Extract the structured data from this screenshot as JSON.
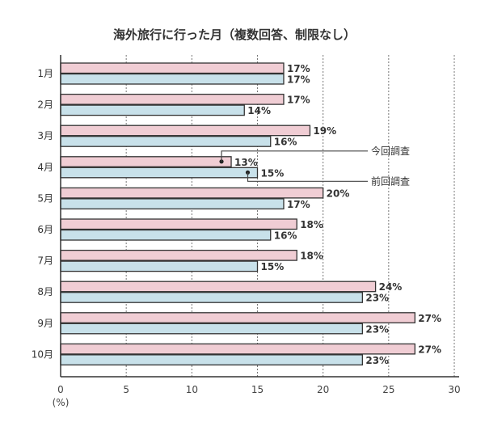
{
  "chart_data": {
    "type": "bar",
    "orientation": "horizontal",
    "title": "海外旅行に行った月（複数回答、制限なし）",
    "categories": [
      "1月",
      "2月",
      "3月",
      "4月",
      "5月",
      "6月",
      "7月",
      "8月",
      "9月",
      "10月"
    ],
    "series": [
      {
        "name": "今回調査",
        "color": "#f0cdd4",
        "values": [
          17,
          17,
          19,
          13,
          20,
          18,
          18,
          24,
          27,
          27
        ]
      },
      {
        "name": "前回調査",
        "color": "#c8e1ea",
        "values": [
          17,
          14,
          16,
          15,
          17,
          16,
          15,
          23,
          23,
          23
        ]
      }
    ],
    "value_suffix": "%",
    "xlim": [
      0,
      30
    ],
    "xticks": [
      "0",
      "5",
      "10",
      "15",
      "20",
      "25",
      "30"
    ],
    "xunit": "(%)",
    "grid": "vertical dotted",
    "legend": "inline callouts at 4月"
  }
}
